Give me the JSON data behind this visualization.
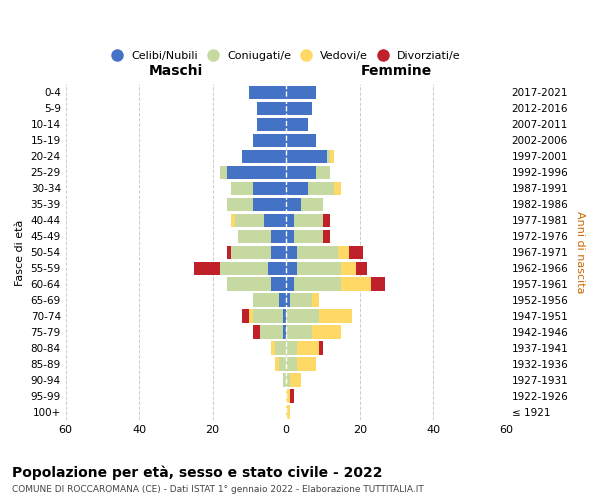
{
  "age_groups": [
    "100+",
    "95-99",
    "90-94",
    "85-89",
    "80-84",
    "75-79",
    "70-74",
    "65-69",
    "60-64",
    "55-59",
    "50-54",
    "45-49",
    "40-44",
    "35-39",
    "30-34",
    "25-29",
    "20-24",
    "15-19",
    "10-14",
    "5-9",
    "0-4"
  ],
  "birth_years": [
    "≤ 1921",
    "1922-1926",
    "1927-1931",
    "1932-1936",
    "1937-1941",
    "1942-1946",
    "1947-1951",
    "1952-1956",
    "1957-1961",
    "1962-1966",
    "1967-1971",
    "1972-1976",
    "1977-1981",
    "1982-1986",
    "1987-1991",
    "1992-1996",
    "1997-2001",
    "2002-2006",
    "2007-2011",
    "2012-2016",
    "2017-2021"
  ],
  "males": {
    "celibi": [
      0,
      0,
      0,
      0,
      0,
      1,
      1,
      2,
      4,
      5,
      4,
      4,
      6,
      9,
      9,
      16,
      12,
      9,
      8,
      8,
      10
    ],
    "coniugati": [
      0,
      0,
      1,
      2,
      3,
      6,
      8,
      7,
      12,
      13,
      11,
      9,
      8,
      7,
      6,
      2,
      0,
      0,
      0,
      0,
      0
    ],
    "vedovi": [
      0,
      0,
      0,
      1,
      1,
      0,
      1,
      0,
      0,
      0,
      0,
      0,
      1,
      0,
      0,
      0,
      0,
      0,
      0,
      0,
      0
    ],
    "divorziati": [
      0,
      0,
      0,
      0,
      0,
      2,
      2,
      0,
      0,
      7,
      1,
      0,
      0,
      0,
      0,
      0,
      0,
      0,
      0,
      0,
      0
    ]
  },
  "females": {
    "nubili": [
      0,
      0,
      0,
      0,
      0,
      0,
      0,
      1,
      2,
      3,
      3,
      2,
      2,
      4,
      6,
      8,
      11,
      8,
      6,
      7,
      8
    ],
    "coniugate": [
      0,
      0,
      1,
      3,
      3,
      7,
      9,
      6,
      13,
      12,
      11,
      8,
      8,
      6,
      7,
      4,
      1,
      0,
      0,
      0,
      0
    ],
    "vedove": [
      1,
      1,
      3,
      5,
      6,
      8,
      9,
      2,
      8,
      4,
      3,
      0,
      0,
      0,
      2,
      0,
      1,
      0,
      0,
      0,
      0
    ],
    "divorziate": [
      0,
      1,
      0,
      0,
      1,
      0,
      0,
      0,
      4,
      3,
      4,
      2,
      2,
      0,
      0,
      0,
      0,
      0,
      0,
      0,
      0
    ]
  },
  "colors": {
    "celibi_nubili": "#4472C4",
    "coniugati": "#C5D9A0",
    "vedovi": "#FFD966",
    "divorziati": "#C0202A"
  },
  "xlim": [
    -60,
    60
  ],
  "xticks": [
    -60,
    -40,
    -20,
    0,
    20,
    40,
    60
  ],
  "xtick_labels": [
    "60",
    "40",
    "20",
    "0",
    "20",
    "40",
    "60"
  ],
  "title_main": "Popolazione per età, sesso e stato civile - 2022",
  "title_sub": "COMUNE DI ROCCAROMANA (CE) - Dati ISTAT 1° gennaio 2022 - Elaborazione TUTTITALIA.IT",
  "ylabel_left": "Fasce di età",
  "ylabel_right": "Anni di nascita",
  "header_left": "Maschi",
  "header_right": "Femmine",
  "bg_color": "#ffffff",
  "grid_color": "#cccccc"
}
